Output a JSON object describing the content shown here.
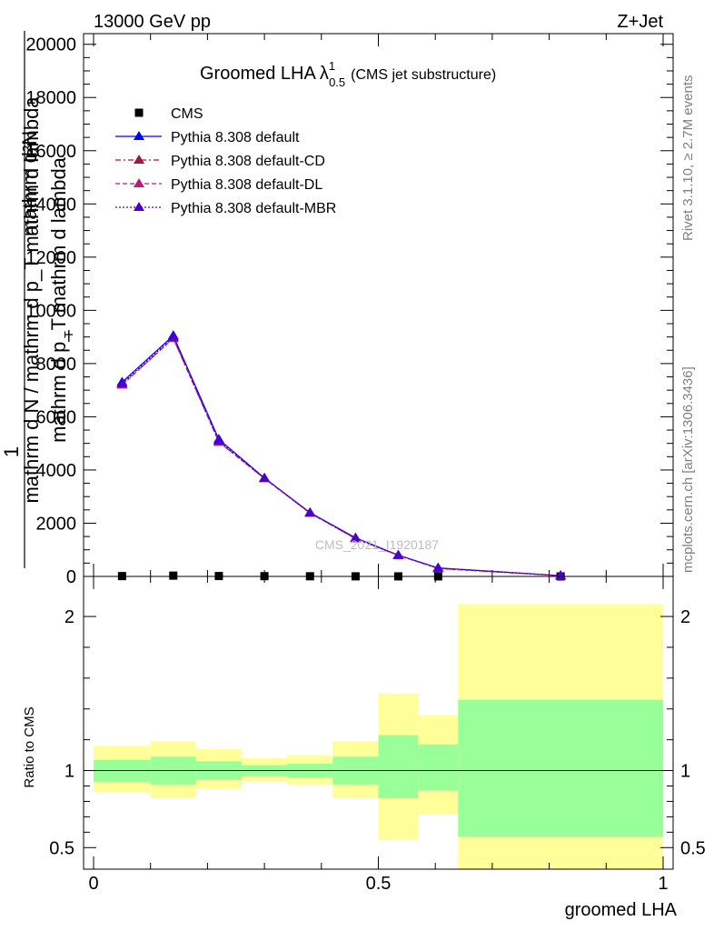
{
  "header": {
    "left": "13000 GeV pp",
    "right": "Z+Jet"
  },
  "side_text": {
    "rivet": "Rivet 3.1.10, ≥ 2.7M events",
    "mcplots": "mcplots.cern.ch [arXiv:1306.3436]"
  },
  "chart_data": [
    {
      "type": "line",
      "title": "Groomed LHA",
      "title_symbol": "λ",
      "title_sup": "1",
      "title_sub": "0.5",
      "subtitle": "(CMS jet substructure)",
      "watermark": "CMS_2021_I1920187",
      "ylabel": {
        "numerator": "1",
        "denominator": "mathrm d N / mathrm d p_T mathrm d lambda",
        "numerator_stack": "mathrm d²N",
        "denominator_stack": "mathrm d p_T mathrm d lambda",
        "tlabel": "T"
      },
      "xlim": [
        0,
        1
      ],
      "ylim": [
        0,
        20400
      ],
      "yticks": [
        0,
        2000,
        4000,
        6000,
        8000,
        10000,
        12000,
        14000,
        16000,
        18000,
        20000
      ],
      "ytick_labels": [
        "0",
        "2000",
        "4000",
        "6000",
        "8000",
        "10000",
        "12000",
        "14000",
        "16000",
        "18000",
        "20000"
      ],
      "x": [
        0.05,
        0.14,
        0.22,
        0.3,
        0.38,
        0.46,
        0.535,
        0.605,
        0.82
      ],
      "legend": [
        "CMS",
        "Pythia 8.308 default",
        "Pythia 8.308 default-CD",
        "Pythia 8.308 default-DL",
        "Pythia 8.308 default-MBR"
      ],
      "series": [
        {
          "name": "CMS",
          "color": "#000000",
          "marker": "square",
          "values": [
            12,
            30,
            15,
            10,
            6,
            3,
            2,
            1,
            0
          ]
        },
        {
          "name": "Pythia 8.308 default",
          "color": "#0000ff",
          "dash": "",
          "marker": "triangle",
          "values": [
            7300,
            9050,
            5150,
            3700,
            2400,
            1450,
            800,
            320,
            30
          ]
        },
        {
          "name": "Pythia 8.308 default-CD",
          "color": "#a0163c",
          "dash": "6,3,2,3",
          "marker": "triangle",
          "values": [
            7200,
            8950,
            5050,
            3680,
            2380,
            1420,
            790,
            300,
            25
          ]
        },
        {
          "name": "Pythia 8.308 default-DL",
          "color": "#c0157f",
          "dash": "5,3",
          "marker": "triangle",
          "values": [
            7200,
            8950,
            5050,
            3680,
            2380,
            1420,
            790,
            300,
            25
          ]
        },
        {
          "name": "Pythia 8.308 default-MBR",
          "color": "#4b00cc",
          "dash": "2,2",
          "marker": "triangle",
          "values": [
            7250,
            9000,
            5100,
            3690,
            2390,
            1430,
            795,
            310,
            28
          ]
        }
      ]
    },
    {
      "type": "bar",
      "ylabel": "Ratio to CMS",
      "xlabel": "groomed LHA",
      "xlim": [
        0,
        1
      ],
      "ylim": [
        0.36,
        2.26
      ],
      "yticks": [
        0.5,
        1,
        2
      ],
      "ytick_labels": [
        "0.5",
        "1",
        "2"
      ],
      "xticks": [
        0,
        0.5,
        1
      ],
      "xtick_labels": [
        "0",
        "0.5",
        "1"
      ],
      "band_colors": {
        "outer": "#ffff99",
        "inner": "#99ff99",
        "line": "#000000"
      },
      "bins": [
        {
          "lo": 0.0,
          "hi": 0.1,
          "inner": [
            0.925,
            1.07
          ],
          "outer": [
            0.86,
            1.16
          ]
        },
        {
          "lo": 0.1,
          "hi": 0.18,
          "inner": [
            0.91,
            1.09
          ],
          "outer": [
            0.82,
            1.19
          ]
        },
        {
          "lo": 0.18,
          "hi": 0.26,
          "inner": [
            0.94,
            1.06
          ],
          "outer": [
            0.88,
            1.14
          ]
        },
        {
          "lo": 0.26,
          "hi": 0.34,
          "inner": [
            0.965,
            1.035
          ],
          "outer": [
            0.93,
            1.08
          ]
        },
        {
          "lo": 0.34,
          "hi": 0.42,
          "inner": [
            0.955,
            1.045
          ],
          "outer": [
            0.91,
            1.1
          ]
        },
        {
          "lo": 0.42,
          "hi": 0.5,
          "inner": [
            0.91,
            1.09
          ],
          "outer": [
            0.82,
            1.19
          ]
        },
        {
          "lo": 0.5,
          "hi": 0.57,
          "inner": [
            0.82,
            1.23
          ],
          "outer": [
            0.55,
            1.5
          ]
        },
        {
          "lo": 0.57,
          "hi": 0.64,
          "inner": [
            0.87,
            1.17
          ],
          "outer": [
            0.72,
            1.36
          ]
        },
        {
          "lo": 0.64,
          "hi": 1.0,
          "inner": [
            0.57,
            1.46
          ],
          "outer": [
            0.36,
            2.08
          ]
        }
      ]
    }
  ]
}
